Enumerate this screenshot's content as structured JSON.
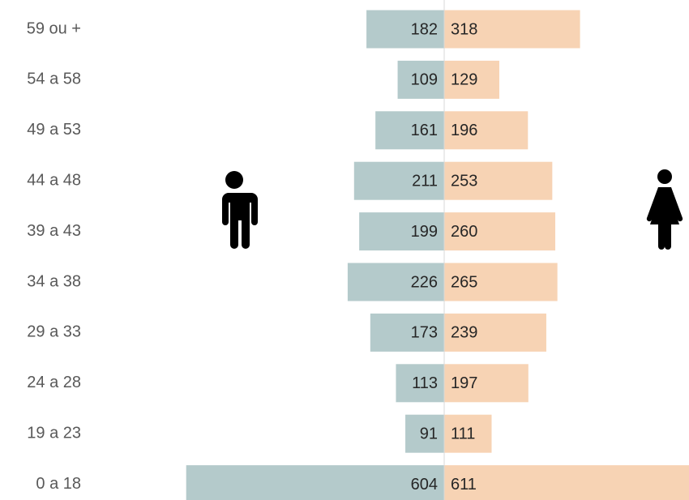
{
  "chart_data": {
    "type": "bar",
    "categories": [
      "59 ou +",
      "54 a 58",
      "49 a 53",
      "44 a 48",
      "39 a 43",
      "34 a 38",
      "29 a 33",
      "24 a 28",
      "19 a 23",
      "0 a 18"
    ],
    "series": [
      {
        "color": "#b4cacb",
        "values": [
          182,
          109,
          161,
          211,
          199,
          226,
          173,
          113,
          91,
          604
        ]
      },
      {
        "color": "#f7d3b4",
        "values": [
          318,
          129,
          196,
          253,
          260,
          265,
          239,
          197,
          111,
          611
        ]
      }
    ]
  }
}
